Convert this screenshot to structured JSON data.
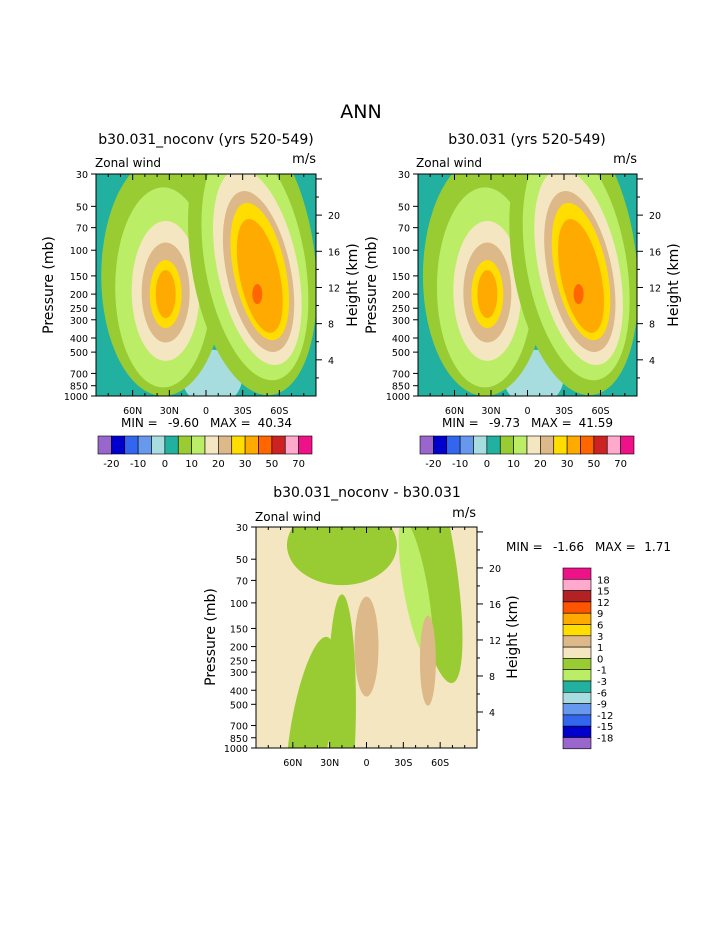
{
  "page_title": "ANN",
  "palette": {
    "lev": [
      "#9966cc",
      "#0000cc",
      "#3366ee",
      "#6699ee",
      "#a8dde0",
      "#22b0a0",
      "#99cc33",
      "#bbee66",
      "#f5e6c2",
      "#ddb888",
      "#ffdd00",
      "#ffaa00",
      "#ff6600",
      "#cc2222",
      "#ffaacc",
      "#ee1188"
    ],
    "diff": [
      "#ee1188",
      "#ffaacc",
      "#b22222",
      "#ff5500",
      "#ffaa00",
      "#ffdd00",
      "#ddb888",
      "#f5e6c2",
      "#99cc33",
      "#bbee66",
      "#22b0a0",
      "#a8dde0",
      "#6699ee",
      "#3366ee",
      "#0000cc",
      "#9966cc"
    ]
  },
  "common": {
    "subtitle_left": "Zonal wind",
    "units": "m/s",
    "ylabel": "Pressure (mb)",
    "rlabel": "Height (km)",
    "pressure_ticks": [
      "30",
      "50",
      "70",
      "100",
      "150",
      "200",
      "250",
      "300",
      "400",
      "500",
      "700",
      "850",
      "1000"
    ],
    "height_ticks": [
      "20",
      "16",
      "12",
      "8",
      "4"
    ],
    "lat_ticks": [
      "60N",
      "30N",
      "0",
      "30S",
      "60S"
    ]
  },
  "chart_data": [
    {
      "type": "heatmap",
      "title": "b30.031_noconv (yrs 520-549)",
      "min_label": "MIN =",
      "min": "-9.60",
      "max_label": "MAX =",
      "max": "40.34",
      "colorbar_labels": [
        "-20",
        "-10",
        "0",
        "10",
        "20",
        "30",
        "50",
        "70"
      ],
      "jets": [
        {
          "lat": 35,
          "core": "#ffdd00"
        },
        {
          "lat": -40,
          "core": "#ff6600"
        }
      ]
    },
    {
      "type": "heatmap",
      "title": "b30.031 (yrs 520-549)",
      "min_label": "MIN =",
      "min": "-9.73",
      "max_label": "MAX =",
      "max": "41.59",
      "colorbar_labels": [
        "-20",
        "-10",
        "0",
        "10",
        "20",
        "30",
        "50",
        "70"
      ],
      "jets": [
        {
          "lat": 35,
          "core": "#ffdd00"
        },
        {
          "lat": -40,
          "core": "#ff6600"
        }
      ]
    },
    {
      "type": "heatmap",
      "title": "b30.031_noconv - b30.031",
      "min_label": "MIN =",
      "min": "-1.66",
      "max_label": "MAX =",
      "max": "1.71",
      "colorbar_labels": [
        "18",
        "15",
        "12",
        "9",
        "6",
        "3",
        "1",
        "0",
        "-1",
        "-3",
        "-6",
        "-9",
        "-12",
        "-15",
        "-18"
      ]
    }
  ]
}
